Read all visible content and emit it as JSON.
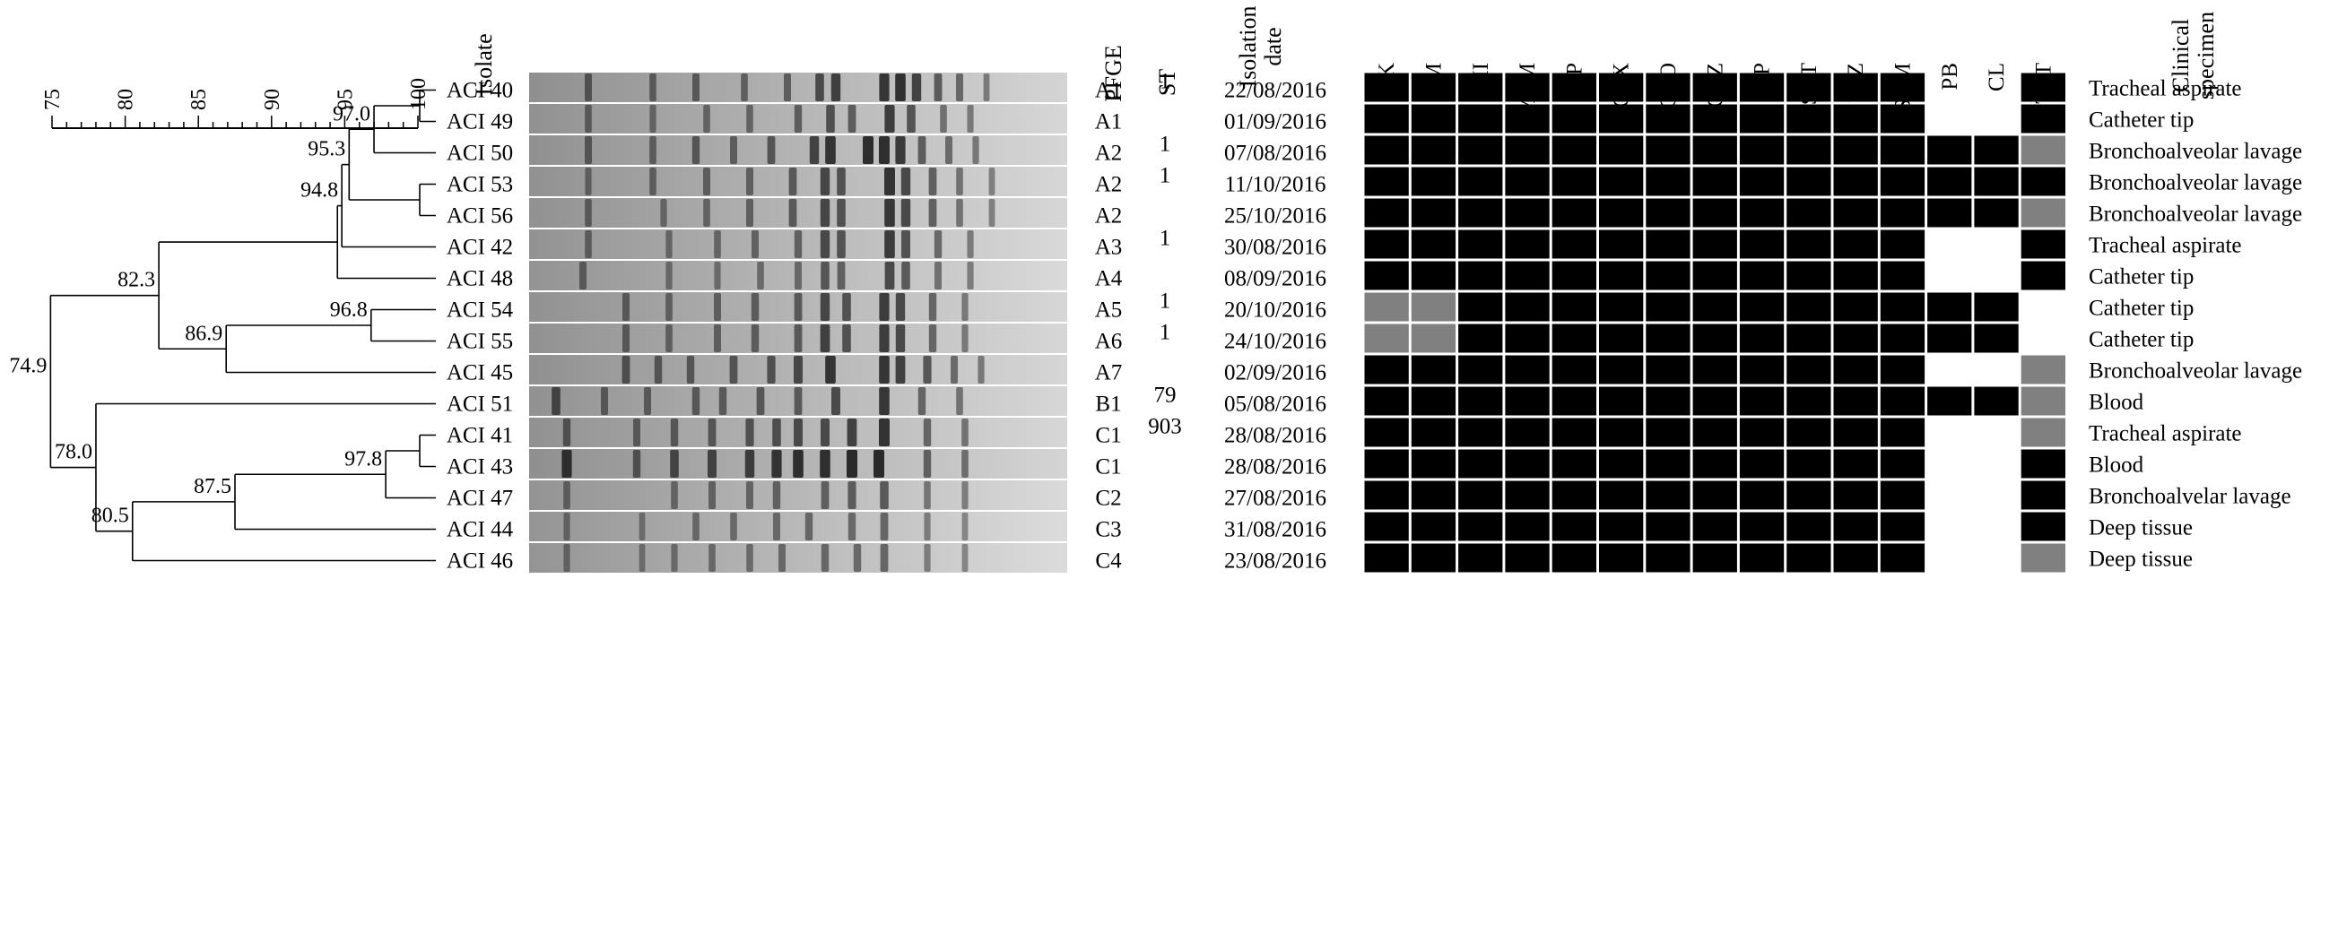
{
  "scale": {
    "min": 75,
    "max": 100,
    "ticks": [
      "75",
      "80",
      "85",
      "90",
      "95",
      "100"
    ]
  },
  "headers": {
    "isolate": "Isolate",
    "pfge": "PFGE",
    "st": "ST",
    "date_line1": "Isolation",
    "date_line2": "date",
    "specimen_line1": "Clinical",
    "specimen_line2": "specimen"
  },
  "antibiotics": [
    "AK",
    "GM",
    "IMI",
    "MEM",
    "CIP",
    "CTX",
    "CRO",
    "CAZ",
    "FEP",
    "SXT",
    "PTZ",
    "SAM",
    "PB",
    "CL",
    "TET"
  ],
  "legend_colors": {
    "R": "#000000",
    "I": "#808080",
    "S": "#ffffff"
  },
  "isolates": [
    {
      "name": "ACI 40",
      "pfge": "A1",
      "st": "1",
      "date": "22/08/2016",
      "specimen": "Tracheal aspirate",
      "profile": "RRRRRRRRRRRRSSR"
    },
    {
      "name": "ACI 49",
      "pfge": "A1",
      "st": "",
      "date": "01/09/2016",
      "specimen": "Catheter tip",
      "profile": "RRRRRRRRRRRRSSR"
    },
    {
      "name": "ACI 50",
      "pfge": "A2",
      "st": "1",
      "date": "07/08/2016",
      "specimen": "Bronchoalveolar lavage",
      "profile": "RRRRRRRRRRRRRRI"
    },
    {
      "name": "ACI 53",
      "pfge": "A2",
      "st": "1",
      "date": "11/10/2016",
      "specimen": "Bronchoalveolar lavage",
      "profile": "RRRRRRRRRRRRRRR"
    },
    {
      "name": "ACI 56",
      "pfge": "A2",
      "st": "",
      "date": "25/10/2016",
      "specimen": "Bronchoalveolar lavage",
      "profile": "RRRRRRRRRRRRRRI"
    },
    {
      "name": "ACI 42",
      "pfge": "A3",
      "st": "1",
      "date": "30/08/2016",
      "specimen": "Tracheal aspirate",
      "profile": "RRRRRRRRRRRRSSR"
    },
    {
      "name": "ACI 48",
      "pfge": "A4",
      "st": "",
      "date": "08/09/2016",
      "specimen": "Catheter tip",
      "profile": "RRRRRRRRRRRRSSR"
    },
    {
      "name": "ACI 54",
      "pfge": "A5",
      "st": "1",
      "date": "20/10/2016",
      "specimen": "Catheter tip",
      "profile": "IIRRRRRRRRRRRRS"
    },
    {
      "name": "ACI 55",
      "pfge": "A6",
      "st": "1",
      "date": "24/10/2016",
      "specimen": "Catheter tip",
      "profile": "IIRRRRRRRRRRRRS"
    },
    {
      "name": "ACI 45",
      "pfge": "A7",
      "st": "",
      "date": "02/09/2016",
      "specimen": "Bronchoalveolar lavage",
      "profile": "RRRRRRRRRRRRSSI"
    },
    {
      "name": "ACI 51",
      "pfge": "B1",
      "st": "79",
      "date": "05/08/2016",
      "specimen": "Blood",
      "profile": "RRRRRRRRRRRRRRI"
    },
    {
      "name": "ACI 41",
      "pfge": "C1",
      "st": "903",
      "date": "28/08/2016",
      "specimen": "Tracheal aspirate",
      "profile": "RRRRRRRRRRRRSSI"
    },
    {
      "name": "ACI 43",
      "pfge": "C1",
      "st": "",
      "date": "28/08/2016",
      "specimen": "Blood",
      "profile": "RRRRRRRRRRRRSSR"
    },
    {
      "name": "ACI 47",
      "pfge": "C2",
      "st": "",
      "date": "27/08/2016",
      "specimen": "Bronchoalvelar lavage",
      "profile": "RRRRRRRRRRRRSSR"
    },
    {
      "name": "ACI 44",
      "pfge": "C3",
      "st": "",
      "date": "31/08/2016",
      "specimen": "Deep tissue",
      "profile": "RRRRRRRRRRRRSSR"
    },
    {
      "name": "ACI 46",
      "pfge": "C4",
      "st": "",
      "date": "23/08/2016",
      "specimen": "Deep tissue",
      "profile": "RRRRRRRRRRRRSSI"
    }
  ],
  "dendrogram": {
    "nodes": [
      {
        "id": "n1",
        "children": [
          0,
          1
        ],
        "similarity": 100,
        "label": ""
      },
      {
        "id": "n2",
        "children": [
          "n1",
          2
        ],
        "similarity": 97.0,
        "label": "97.0"
      },
      {
        "id": "n3",
        "children": [
          3,
          4
        ],
        "similarity": 100,
        "label": ""
      },
      {
        "id": "n4",
        "children": [
          "n2",
          "n3"
        ],
        "similarity": 95.3,
        "label": "95.3"
      },
      {
        "id": "n5",
        "children": [
          "n4",
          5
        ],
        "similarity": 94.8,
        "label": "94.8"
      },
      {
        "id": "n6",
        "children": [
          "n5",
          6
        ],
        "similarity": 94.5,
        "label": ""
      },
      {
        "id": "n7",
        "children": [
          7,
          8
        ],
        "similarity": 96.8,
        "label": "96.8"
      },
      {
        "id": "n8",
        "children": [
          "n7",
          9
        ],
        "similarity": 86.9,
        "label": "86.9"
      },
      {
        "id": "n9",
        "children": [
          "n6",
          "n8"
        ],
        "similarity": 82.3,
        "label": "82.3"
      },
      {
        "id": "n10",
        "children": [
          11,
          12
        ],
        "similarity": 100,
        "label": ""
      },
      {
        "id": "n11",
        "children": [
          "n10",
          13
        ],
        "similarity": 97.8,
        "label": "97.8"
      },
      {
        "id": "n12",
        "children": [
          "n11",
          14
        ],
        "similarity": 87.5,
        "label": "87.5"
      },
      {
        "id": "n13",
        "children": [
          "n12",
          15
        ],
        "similarity": 80.5,
        "label": "80.5"
      },
      {
        "id": "n14",
        "children": [
          10,
          "n13"
        ],
        "similarity": 78.0,
        "label": "78.0"
      },
      {
        "id": "n15",
        "children": [
          "n9",
          "n14"
        ],
        "similarity": 74.9,
        "label": "74.9"
      }
    ]
  },
  "gel": {
    "lanes": [
      {
        "darkness": 0.55,
        "bands": [
          [
            0.11,
            0.5
          ],
          [
            0.23,
            0.45
          ],
          [
            0.31,
            0.5
          ],
          [
            0.4,
            0.45
          ],
          [
            0.48,
            0.5
          ],
          [
            0.54,
            0.7
          ],
          [
            0.57,
            0.8
          ],
          [
            0.66,
            0.9
          ],
          [
            0.69,
            0.95
          ],
          [
            0.72,
            0.8
          ],
          [
            0.76,
            0.6
          ],
          [
            0.8,
            0.5
          ],
          [
            0.85,
            0.35
          ]
        ]
      },
      {
        "darkness": 0.45,
        "bands": [
          [
            0.11,
            0.45
          ],
          [
            0.23,
            0.4
          ],
          [
            0.33,
            0.45
          ],
          [
            0.41,
            0.45
          ],
          [
            0.5,
            0.55
          ],
          [
            0.56,
            0.7
          ],
          [
            0.6,
            0.6
          ],
          [
            0.67,
            0.9
          ],
          [
            0.71,
            0.7
          ],
          [
            0.77,
            0.45
          ],
          [
            0.82,
            0.4
          ]
        ]
      },
      {
        "darkness": 0.5,
        "bands": [
          [
            0.11,
            0.5
          ],
          [
            0.23,
            0.45
          ],
          [
            0.31,
            0.55
          ],
          [
            0.38,
            0.5
          ],
          [
            0.45,
            0.6
          ],
          [
            0.53,
            0.8
          ],
          [
            0.56,
            0.95
          ],
          [
            0.63,
            1.0
          ],
          [
            0.66,
            1.0
          ],
          [
            0.69,
            0.9
          ],
          [
            0.73,
            0.6
          ],
          [
            0.78,
            0.5
          ],
          [
            0.83,
            0.4
          ]
        ]
      },
      {
        "darkness": 0.45,
        "bands": [
          [
            0.11,
            0.4
          ],
          [
            0.23,
            0.45
          ],
          [
            0.33,
            0.5
          ],
          [
            0.41,
            0.5
          ],
          [
            0.49,
            0.6
          ],
          [
            0.55,
            0.8
          ],
          [
            0.58,
            0.7
          ],
          [
            0.67,
            1.0
          ],
          [
            0.7,
            0.8
          ],
          [
            0.75,
            0.6
          ],
          [
            0.8,
            0.45
          ],
          [
            0.86,
            0.35
          ]
        ]
      },
      {
        "darkness": 0.45,
        "bands": [
          [
            0.11,
            0.45
          ],
          [
            0.25,
            0.4
          ],
          [
            0.33,
            0.45
          ],
          [
            0.41,
            0.5
          ],
          [
            0.49,
            0.6
          ],
          [
            0.55,
            0.8
          ],
          [
            0.58,
            0.7
          ],
          [
            0.67,
            0.95
          ],
          [
            0.7,
            0.8
          ],
          [
            0.75,
            0.6
          ],
          [
            0.8,
            0.45
          ],
          [
            0.86,
            0.35
          ]
        ]
      },
      {
        "darkness": 0.4,
        "bands": [
          [
            0.11,
            0.45
          ],
          [
            0.26,
            0.4
          ],
          [
            0.35,
            0.45
          ],
          [
            0.42,
            0.5
          ],
          [
            0.5,
            0.55
          ],
          [
            0.55,
            0.8
          ],
          [
            0.58,
            0.7
          ],
          [
            0.67,
            0.95
          ],
          [
            0.7,
            0.75
          ],
          [
            0.76,
            0.55
          ],
          [
            0.82,
            0.4
          ]
        ]
      },
      {
        "darkness": 0.35,
        "bands": [
          [
            0.1,
            0.5
          ],
          [
            0.26,
            0.4
          ],
          [
            0.35,
            0.4
          ],
          [
            0.43,
            0.45
          ],
          [
            0.5,
            0.5
          ],
          [
            0.55,
            0.7
          ],
          [
            0.58,
            0.6
          ],
          [
            0.67,
            0.85
          ],
          [
            0.7,
            0.7
          ],
          [
            0.76,
            0.5
          ],
          [
            0.82,
            0.4
          ]
        ]
      },
      {
        "darkness": 0.45,
        "bands": [
          [
            0.18,
            0.5
          ],
          [
            0.26,
            0.45
          ],
          [
            0.35,
            0.5
          ],
          [
            0.42,
            0.55
          ],
          [
            0.5,
            0.6
          ],
          [
            0.55,
            0.8
          ],
          [
            0.59,
            0.7
          ],
          [
            0.66,
            0.9
          ],
          [
            0.69,
            0.8
          ],
          [
            0.75,
            0.55
          ],
          [
            0.81,
            0.4
          ]
        ]
      },
      {
        "darkness": 0.45,
        "bands": [
          [
            0.18,
            0.5
          ],
          [
            0.26,
            0.45
          ],
          [
            0.35,
            0.5
          ],
          [
            0.42,
            0.55
          ],
          [
            0.5,
            0.6
          ],
          [
            0.55,
            0.85
          ],
          [
            0.59,
            0.7
          ],
          [
            0.66,
            0.9
          ],
          [
            0.69,
            0.8
          ],
          [
            0.75,
            0.55
          ],
          [
            0.81,
            0.4
          ]
        ]
      },
      {
        "darkness": 0.5,
        "bands": [
          [
            0.18,
            0.6
          ],
          [
            0.24,
            0.55
          ],
          [
            0.3,
            0.55
          ],
          [
            0.38,
            0.6
          ],
          [
            0.45,
            0.65
          ],
          [
            0.5,
            0.75
          ],
          [
            0.56,
            0.95
          ],
          [
            0.66,
            0.95
          ],
          [
            0.69,
            0.85
          ],
          [
            0.74,
            0.65
          ],
          [
            0.79,
            0.5
          ],
          [
            0.84,
            0.4
          ]
        ]
      },
      {
        "darkness": 0.45,
        "bands": [
          [
            0.05,
            0.7
          ],
          [
            0.14,
            0.5
          ],
          [
            0.22,
            0.5
          ],
          [
            0.31,
            0.55
          ],
          [
            0.36,
            0.55
          ],
          [
            0.43,
            0.6
          ],
          [
            0.5,
            0.6
          ],
          [
            0.57,
            0.75
          ],
          [
            0.66,
            0.95
          ],
          [
            0.73,
            0.55
          ],
          [
            0.8,
            0.45
          ]
        ]
      },
      {
        "darkness": 0.45,
        "bands": [
          [
            0.07,
            0.55
          ],
          [
            0.2,
            0.5
          ],
          [
            0.27,
            0.55
          ],
          [
            0.34,
            0.6
          ],
          [
            0.41,
            0.65
          ],
          [
            0.46,
            0.7
          ],
          [
            0.5,
            0.75
          ],
          [
            0.55,
            0.75
          ],
          [
            0.6,
            0.85
          ],
          [
            0.66,
            1.0
          ],
          [
            0.74,
            0.55
          ],
          [
            0.81,
            0.45
          ]
        ]
      },
      {
        "darkness": 0.55,
        "bands": [
          [
            0.07,
            0.9
          ],
          [
            0.2,
            0.55
          ],
          [
            0.27,
            0.7
          ],
          [
            0.34,
            0.75
          ],
          [
            0.41,
            0.8
          ],
          [
            0.46,
            0.9
          ],
          [
            0.5,
            0.95
          ],
          [
            0.55,
            0.95
          ],
          [
            0.6,
            1.0
          ],
          [
            0.65,
            1.0
          ],
          [
            0.74,
            0.55
          ],
          [
            0.81,
            0.45
          ]
        ]
      },
      {
        "darkness": 0.35,
        "bands": [
          [
            0.07,
            0.45
          ],
          [
            0.27,
            0.45
          ],
          [
            0.34,
            0.5
          ],
          [
            0.41,
            0.5
          ],
          [
            0.46,
            0.55
          ],
          [
            0.55,
            0.6
          ],
          [
            0.6,
            0.65
          ],
          [
            0.66,
            0.7
          ],
          [
            0.74,
            0.45
          ],
          [
            0.81,
            0.4
          ]
        ]
      },
      {
        "darkness": 0.3,
        "bands": [
          [
            0.07,
            0.4
          ],
          [
            0.21,
            0.35
          ],
          [
            0.31,
            0.45
          ],
          [
            0.38,
            0.45
          ],
          [
            0.46,
            0.5
          ],
          [
            0.52,
            0.55
          ],
          [
            0.6,
            0.55
          ],
          [
            0.66,
            0.6
          ],
          [
            0.74,
            0.4
          ],
          [
            0.81,
            0.35
          ]
        ]
      },
      {
        "darkness": 0.3,
        "bands": [
          [
            0.07,
            0.4
          ],
          [
            0.21,
            0.35
          ],
          [
            0.27,
            0.4
          ],
          [
            0.34,
            0.45
          ],
          [
            0.41,
            0.45
          ],
          [
            0.47,
            0.5
          ],
          [
            0.55,
            0.55
          ],
          [
            0.61,
            0.55
          ],
          [
            0.66,
            0.6
          ],
          [
            0.74,
            0.4
          ],
          [
            0.81,
            0.35
          ]
        ]
      }
    ]
  }
}
